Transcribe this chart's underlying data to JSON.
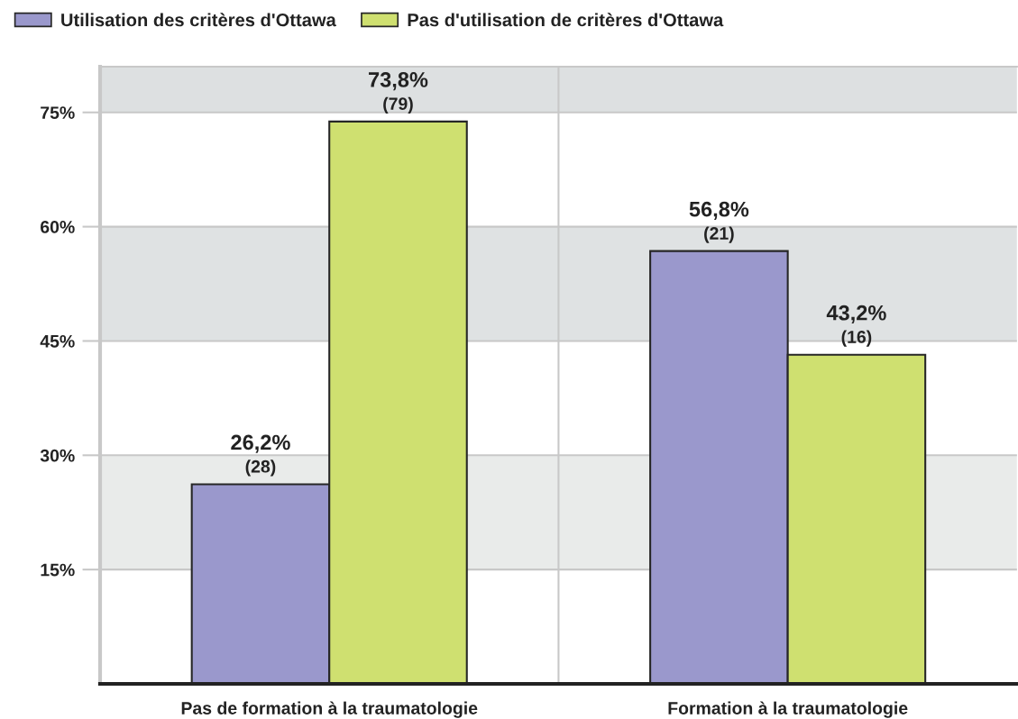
{
  "chart_data": {
    "type": "bar",
    "categories": [
      "Pas de formation à la traumatologie",
      "Formation à la traumatologie"
    ],
    "series": [
      {
        "name": "Utilisation des critères d'Ottawa",
        "color": "#9a98cc",
        "values": [
          26.2,
          56.8
        ],
        "value_labels": [
          "26,2%\n(28)",
          "56,8%\n(21)"
        ]
      },
      {
        "name": "Pas d'utilisation de critères d'Ottawa",
        "color": "#cfe070",
        "values": [
          73.8,
          43.2
        ],
        "value_labels": [
          "73,8%\n(79)",
          "43,2%\n(16)"
        ]
      }
    ],
    "ylim": [
      0,
      81
    ],
    "yticks": [
      {
        "value": 15,
        "label": "15%"
      },
      {
        "value": 30,
        "label": "30%"
      },
      {
        "value": 45,
        "label": "45%"
      },
      {
        "value": 60,
        "label": "60%"
      },
      {
        "value": 75,
        "label": "75%"
      }
    ],
    "bands": [
      {
        "axis": "y",
        "from": 75,
        "to": 81,
        "color": "#dde0e1"
      },
      {
        "axis": "y",
        "from": 45,
        "to": 60,
        "color": "#dfe2e3"
      },
      {
        "axis": "y",
        "from": 15,
        "to": 30,
        "color": "#e9ebea"
      }
    ],
    "grid": true,
    "legend": "top left"
  }
}
